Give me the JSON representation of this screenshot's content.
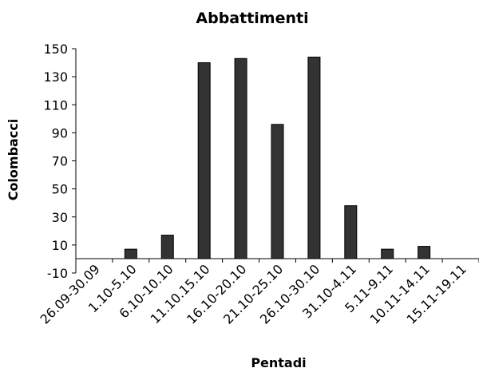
{
  "chart_data": {
    "type": "bar",
    "title": "Abbattimenti",
    "xlabel": "Pentadi",
    "ylabel": "Colombacci",
    "categories": [
      "26.09-30.09",
      "1.10-5.10",
      "6.10-10.10",
      "11.10.15.10",
      "16.10-20.10",
      "21.10-25.10",
      "26.10-30.10",
      "31.10-4.11",
      "5.11-9.11",
      "10.11-14.11",
      "15.11-19.11"
    ],
    "values": [
      0,
      7,
      17,
      140,
      143,
      96,
      144,
      38,
      7,
      9,
      0
    ],
    "ylim": [
      -10,
      150
    ],
    "yticks": [
      -10,
      10,
      30,
      50,
      70,
      90,
      110,
      130,
      150
    ],
    "grid": false,
    "legend": "none",
    "bar_color": "#333333"
  }
}
